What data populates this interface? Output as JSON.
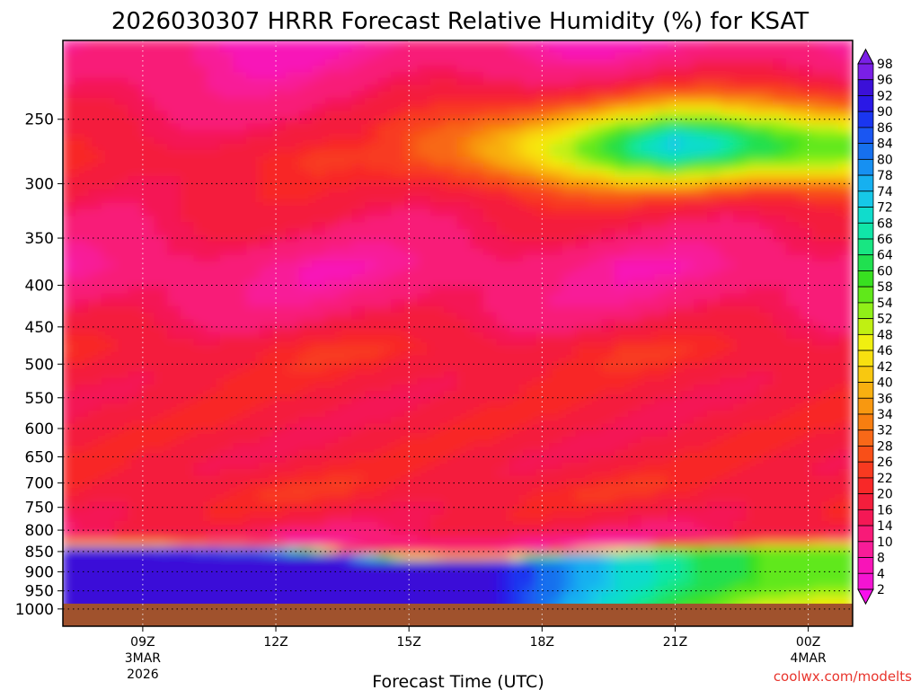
{
  "chart_data": {
    "type": "heatmap",
    "title": "2026030307 HRRR Forecast Relative Humidity (%) for KSAT",
    "xlabel": "Forecast Time (UTC)",
    "ylabel": "",
    "credit": "coolwx.com/modelts",
    "y_scale": "log-pressure",
    "y_range_hPa": [
      200,
      1050
    ],
    "x_range_hours": [
      7.2,
      25.0
    ],
    "y_ticks": [
      250,
      300,
      350,
      400,
      450,
      500,
      550,
      600,
      650,
      700,
      750,
      800,
      850,
      900,
      950,
      1000
    ],
    "x_ticks": [
      {
        "hour": 9,
        "lines": [
          "09Z",
          "3MAR",
          "2026"
        ]
      },
      {
        "hour": 12,
        "lines": [
          "12Z"
        ]
      },
      {
        "hour": 15,
        "lines": [
          "15Z"
        ]
      },
      {
        "hour": 18,
        "lines": [
          "18Z"
        ]
      },
      {
        "hour": 21,
        "lines": [
          "21Z"
        ]
      },
      {
        "hour": 24,
        "lines": [
          "00Z",
          "4MAR"
        ]
      }
    ],
    "colorbar_levels": [
      98,
      96,
      92,
      90,
      86,
      84,
      80,
      78,
      74,
      72,
      68,
      66,
      64,
      60,
      58,
      54,
      52,
      48,
      46,
      42,
      40,
      36,
      34,
      32,
      28,
      26,
      22,
      20,
      16,
      14,
      10,
      8,
      4,
      2
    ],
    "colorbar_colors": [
      "#7a1fe6",
      "#3b10d8",
      "#2a18e6",
      "#1a36f0",
      "#1a56f2",
      "#1670ee",
      "#1690f2",
      "#16b0f0",
      "#16c8e8",
      "#10dccc",
      "#10e6a8",
      "#18e682",
      "#20e050",
      "#38e020",
      "#60e81a",
      "#90f018",
      "#c0f012",
      "#f0f010",
      "#f8e010",
      "#f8c810",
      "#f8b010",
      "#f89810",
      "#f87e10",
      "#f86818",
      "#f84f18",
      "#f83a20",
      "#f82828",
      "#f41e3c",
      "#f41855",
      "#f81a78",
      "#f81c98",
      "#f814b8",
      "#f414d2",
      "#f810ec"
    ],
    "fields": {
      "background_rh": 18,
      "profile": [
        {
          "p": 200,
          "rh": 8
        },
        {
          "p": 230,
          "rh": 12
        },
        {
          "p": 280,
          "rh": 20
        },
        {
          "p": 330,
          "rh": 16
        },
        {
          "p": 380,
          "rh": 10
        },
        {
          "p": 420,
          "rh": 12
        },
        {
          "p": 480,
          "rh": 20
        },
        {
          "p": 550,
          "rh": 18
        },
        {
          "p": 650,
          "rh": 18
        },
        {
          "p": 720,
          "rh": 20
        },
        {
          "p": 800,
          "rh": 16
        },
        {
          "p": 830,
          "rh": 10
        }
      ],
      "upper_moist_layer": {
        "hour_start": 15.0,
        "hour_peak": 21.0,
        "p_center": 270,
        "peak_rh": 70
      },
      "inversion_top_hPa": [
        {
          "hour": 7.2,
          "p": 828
        },
        {
          "hour": 9.0,
          "p": 828
        },
        {
          "hour": 12.0,
          "p": 832
        },
        {
          "hour": 15.0,
          "p": 858
        },
        {
          "hour": 17.0,
          "p": 860
        },
        {
          "hour": 19.0,
          "p": 842
        },
        {
          "hour": 21.0,
          "p": 832
        },
        {
          "hour": 23.0,
          "p": 824
        },
        {
          "hour": 25.0,
          "p": 820
        }
      ],
      "boundary_layer_rh": [
        {
          "hour": 7.2,
          "rh": 92
        },
        {
          "hour": 12.0,
          "rh": 94
        },
        {
          "hour": 15.0,
          "rh": 95
        },
        {
          "hour": 17.0,
          "rh": 92
        },
        {
          "hour": 18.0,
          "rh": 84
        },
        {
          "hour": 19.0,
          "rh": 76
        },
        {
          "hour": 21.0,
          "rh": 66
        },
        {
          "hour": 23.0,
          "rh": 58
        },
        {
          "hour": 25.0,
          "rh": 56
        }
      ],
      "surface_pressure_hPa": 985
    }
  }
}
